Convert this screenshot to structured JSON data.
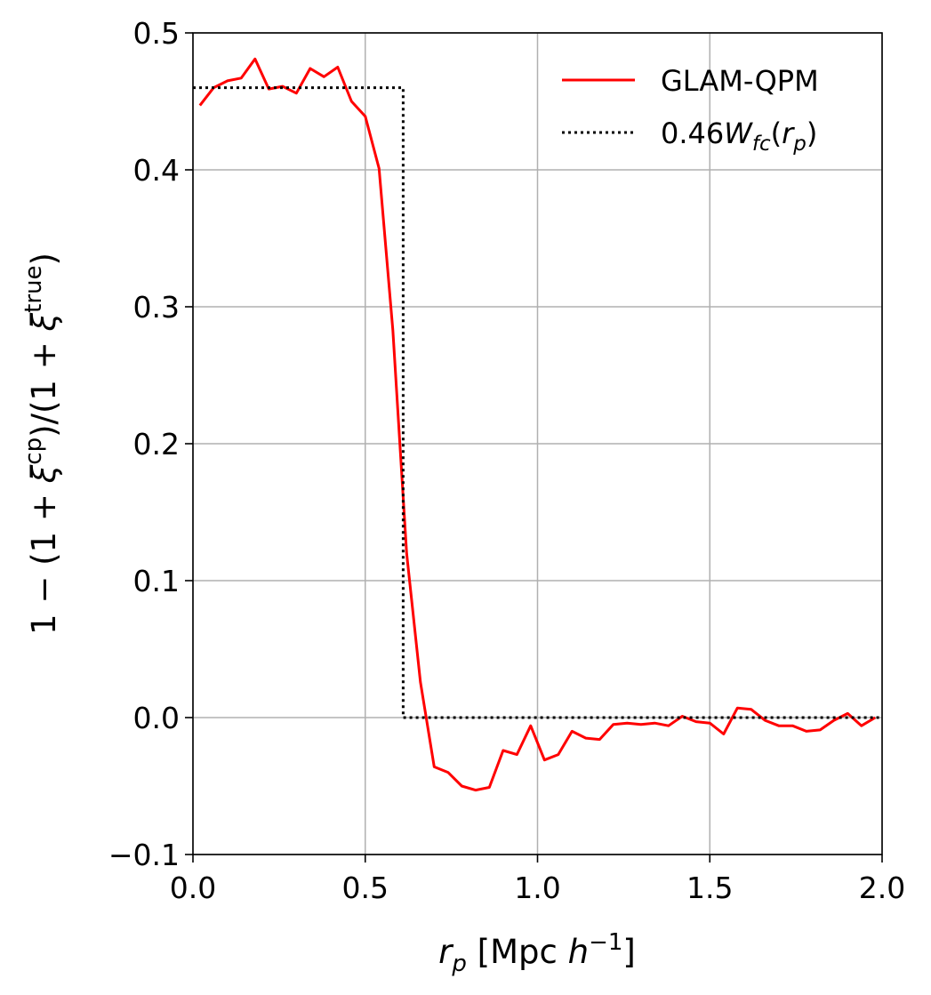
{
  "chart_data": {
    "type": "line",
    "xlabel": "r_p [Mpc h^-1]",
    "ylabel": "1 − (1 + ξ^cp)/(1 + ξ^true)",
    "xlim": [
      0.0,
      2.0
    ],
    "ylim": [
      -0.1,
      0.5
    ],
    "grid": true,
    "legend_position": "top-right",
    "x_ticks": [
      "0.0",
      "0.5",
      "1.0",
      "1.5",
      "2.0"
    ],
    "y_ticks": [
      "−0.1",
      "0.0",
      "0.1",
      "0.2",
      "0.3",
      "0.4",
      "0.5"
    ],
    "x_tick_values": [
      0.0,
      0.5,
      1.0,
      1.5,
      2.0
    ],
    "y_tick_values": [
      -0.1,
      0.0,
      0.1,
      0.2,
      0.3,
      0.4,
      0.5
    ],
    "series": [
      {
        "name": "GLAM-QPM",
        "color": "#ff0000",
        "style": "solid",
        "x": [
          0.02,
          0.06,
          0.1,
          0.14,
          0.18,
          0.22,
          0.26,
          0.3,
          0.34,
          0.38,
          0.42,
          0.46,
          0.5,
          0.54,
          0.58,
          0.62,
          0.66,
          0.7,
          0.74,
          0.78,
          0.82,
          0.86,
          0.9,
          0.94,
          0.98,
          1.02,
          1.06,
          1.1,
          1.14,
          1.18,
          1.22,
          1.26,
          1.3,
          1.34,
          1.38,
          1.42,
          1.46,
          1.5,
          1.54,
          1.58,
          1.62,
          1.66,
          1.7,
          1.74,
          1.78,
          1.82,
          1.86,
          1.9,
          1.94,
          1.98
        ],
        "y": [
          0.447,
          0.46,
          0.465,
          0.467,
          0.481,
          0.459,
          0.461,
          0.456,
          0.474,
          0.468,
          0.475,
          0.45,
          0.439,
          0.401,
          0.283,
          0.12,
          0.026,
          -0.036,
          -0.04,
          -0.05,
          -0.053,
          -0.051,
          -0.024,
          -0.027,
          -0.006,
          -0.031,
          -0.027,
          -0.01,
          -0.015,
          -0.016,
          -0.005,
          -0.004,
          -0.005,
          -0.004,
          -0.006,
          0.001,
          -0.003,
          -0.004,
          -0.012,
          0.007,
          0.006,
          -0.002,
          -0.006,
          -0.006,
          -0.01,
          -0.009,
          -0.002,
          0.003,
          -0.006,
          0.0
        ]
      },
      {
        "name": "0.46W_fc(r_p)",
        "color": "#000000",
        "style": "dotted",
        "x": [
          0.0,
          0.61,
          0.61,
          2.0
        ],
        "y": [
          0.46,
          0.46,
          0.0,
          0.0
        ]
      }
    ]
  }
}
